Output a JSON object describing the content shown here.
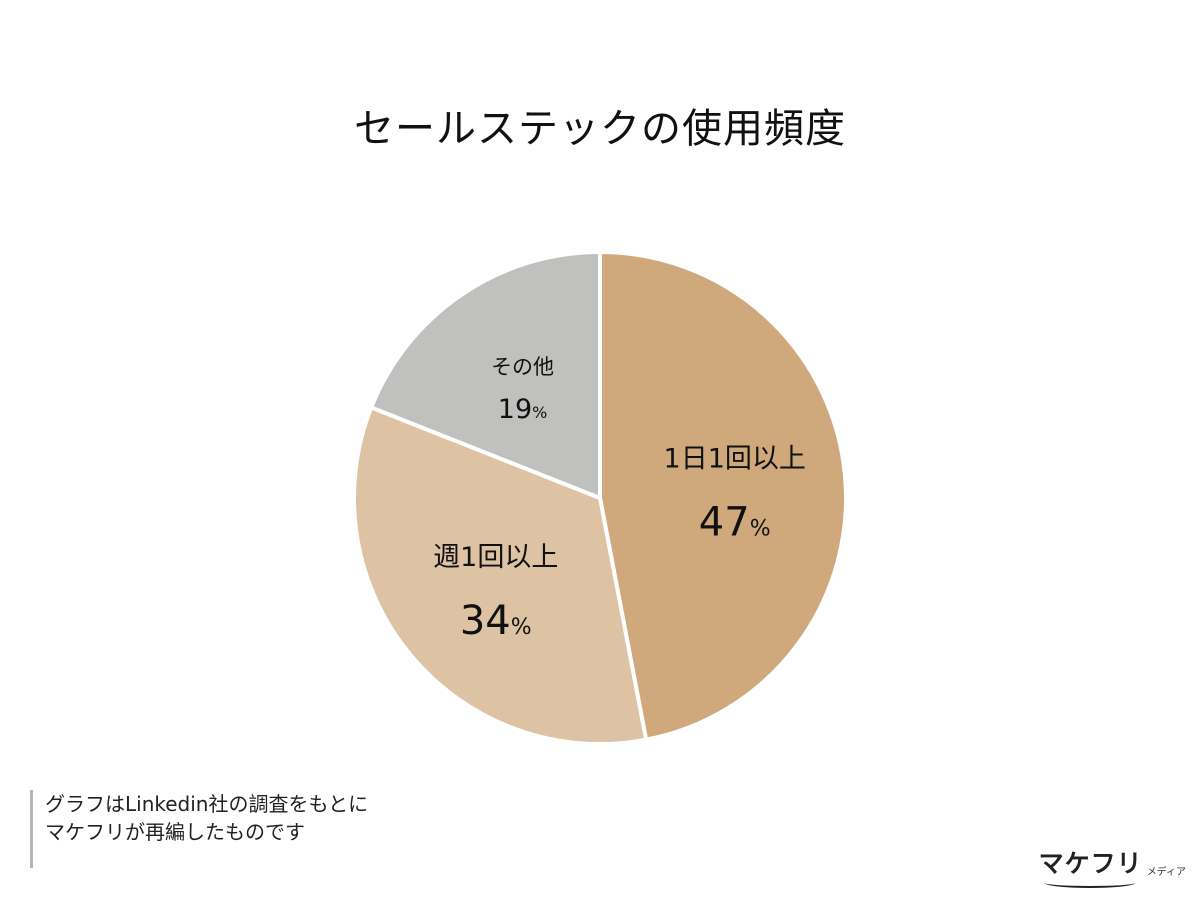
{
  "chart_data": {
    "type": "pie",
    "title": "セールステックの使用頻度",
    "slices": [
      {
        "label": "1日1回以上",
        "value": 47,
        "color": "#cfa97c"
      },
      {
        "label": "週1回以上",
        "value": 34,
        "color": "#ddc2a3"
      },
      {
        "label": "その他",
        "value": 19,
        "color": "#c0c1be"
      }
    ],
    "percent_suffix": "%",
    "start": "12 o'clock",
    "direction": "clockwise"
  },
  "note": {
    "line1": "グラフはLinkedin社の調査をもとに",
    "line2": "マケフリが再編したものです"
  },
  "logo": {
    "main": "マケフリ",
    "sub": "メディア"
  }
}
